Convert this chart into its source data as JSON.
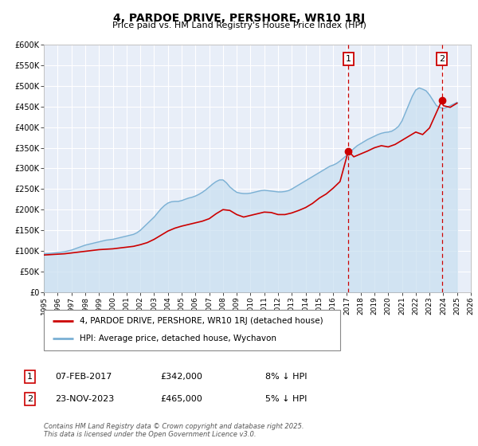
{
  "title": "4, PARDOE DRIVE, PERSHORE, WR10 1RJ",
  "subtitle": "Price paid vs. HM Land Registry's House Price Index (HPI)",
  "xlim": [
    1995,
    2026
  ],
  "ylim": [
    0,
    600000
  ],
  "yticks": [
    0,
    50000,
    100000,
    150000,
    200000,
    250000,
    300000,
    350000,
    400000,
    450000,
    500000,
    550000,
    600000
  ],
  "ytick_labels": [
    "£0",
    "£50K",
    "£100K",
    "£150K",
    "£200K",
    "£250K",
    "£300K",
    "£350K",
    "£400K",
    "£450K",
    "£500K",
    "£550K",
    "£600K"
  ],
  "xticks": [
    1995,
    1996,
    1997,
    1998,
    1999,
    2000,
    2001,
    2002,
    2003,
    2004,
    2005,
    2006,
    2007,
    2008,
    2009,
    2010,
    2011,
    2012,
    2013,
    2014,
    2015,
    2016,
    2017,
    2018,
    2019,
    2020,
    2021,
    2022,
    2023,
    2024,
    2025,
    2026
  ],
  "marker1_x": 2017.1,
  "marker1_y": 342000,
  "marker1_label": "1",
  "marker1_date": "07-FEB-2017",
  "marker1_price": "£342,000",
  "marker1_hpi": "8% ↓ HPI",
  "marker2_x": 2023.9,
  "marker2_y": 465000,
  "marker2_label": "2",
  "marker2_date": "23-NOV-2023",
  "marker2_price": "£465,000",
  "marker2_hpi": "5% ↓ HPI",
  "vline1_x": 2017.1,
  "vline2_x": 2023.9,
  "red_color": "#cc0000",
  "blue_color": "#7ab0d4",
  "blue_fill": "#c8dff0",
  "background_color": "#e8eef8",
  "legend_label_red": "4, PARDOE DRIVE, PERSHORE, WR10 1RJ (detached house)",
  "legend_label_blue": "HPI: Average price, detached house, Wychavon",
  "footer": "Contains HM Land Registry data © Crown copyright and database right 2025.\nThis data is licensed under the Open Government Licence v3.0.",
  "hpi_x": [
    1995.0,
    1995.25,
    1995.5,
    1995.75,
    1996.0,
    1996.25,
    1996.5,
    1996.75,
    1997.0,
    1997.25,
    1997.5,
    1997.75,
    1998.0,
    1998.25,
    1998.5,
    1998.75,
    1999.0,
    1999.25,
    1999.5,
    1999.75,
    2000.0,
    2000.25,
    2000.5,
    2000.75,
    2001.0,
    2001.25,
    2001.5,
    2001.75,
    2002.0,
    2002.25,
    2002.5,
    2002.75,
    2003.0,
    2003.25,
    2003.5,
    2003.75,
    2004.0,
    2004.25,
    2004.5,
    2004.75,
    2005.0,
    2005.25,
    2005.5,
    2005.75,
    2006.0,
    2006.25,
    2006.5,
    2006.75,
    2007.0,
    2007.25,
    2007.5,
    2007.75,
    2008.0,
    2008.25,
    2008.5,
    2008.75,
    2009.0,
    2009.25,
    2009.5,
    2009.75,
    2010.0,
    2010.25,
    2010.5,
    2010.75,
    2011.0,
    2011.25,
    2011.5,
    2011.75,
    2012.0,
    2012.25,
    2012.5,
    2012.75,
    2013.0,
    2013.25,
    2013.5,
    2013.75,
    2014.0,
    2014.25,
    2014.5,
    2014.75,
    2015.0,
    2015.25,
    2015.5,
    2015.75,
    2016.0,
    2016.25,
    2016.5,
    2016.75,
    2017.0,
    2017.25,
    2017.5,
    2017.75,
    2018.0,
    2018.25,
    2018.5,
    2018.75,
    2019.0,
    2019.25,
    2019.5,
    2019.75,
    2020.0,
    2020.25,
    2020.5,
    2020.75,
    2021.0,
    2021.25,
    2021.5,
    2021.75,
    2022.0,
    2022.25,
    2022.5,
    2022.75,
    2023.0,
    2023.25,
    2023.5,
    2023.75,
    2024.0,
    2024.25,
    2024.5,
    2024.75,
    2025.0
  ],
  "hpi_y": [
    93000,
    93500,
    94000,
    95000,
    96000,
    97000,
    98000,
    100000,
    102000,
    105000,
    108000,
    111000,
    114000,
    116000,
    118000,
    120000,
    122000,
    124000,
    126000,
    127000,
    128000,
    130000,
    132000,
    134000,
    136000,
    138000,
    140000,
    144000,
    150000,
    158000,
    166000,
    174000,
    182000,
    192000,
    202000,
    210000,
    216000,
    219000,
    220000,
    220000,
    222000,
    225000,
    228000,
    230000,
    233000,
    237000,
    242000,
    248000,
    255000,
    262000,
    268000,
    272000,
    272000,
    265000,
    255000,
    248000,
    242000,
    240000,
    239000,
    239000,
    240000,
    242000,
    244000,
    246000,
    247000,
    246000,
    245000,
    244000,
    243000,
    243000,
    244000,
    246000,
    250000,
    255000,
    260000,
    265000,
    270000,
    275000,
    280000,
    285000,
    290000,
    295000,
    300000,
    305000,
    308000,
    312000,
    318000,
    325000,
    332000,
    340000,
    348000,
    355000,
    360000,
    365000,
    370000,
    374000,
    378000,
    382000,
    385000,
    387000,
    388000,
    390000,
    395000,
    402000,
    415000,
    435000,
    455000,
    475000,
    490000,
    495000,
    492000,
    488000,
    478000,
    465000,
    452000,
    448000,
    445000,
    448000,
    452000,
    456000,
    460000
  ],
  "price_x": [
    1995.0,
    1995.5,
    1996.0,
    1996.5,
    1997.0,
    1997.5,
    1998.0,
    1998.5,
    1999.0,
    1999.5,
    2000.0,
    2000.5,
    2001.0,
    2001.5,
    2002.0,
    2002.5,
    2003.0,
    2003.5,
    2004.0,
    2004.5,
    2005.0,
    2005.5,
    2006.0,
    2006.5,
    2007.0,
    2007.5,
    2008.0,
    2008.5,
    2009.0,
    2009.5,
    2010.0,
    2010.5,
    2011.0,
    2011.5,
    2012.0,
    2012.5,
    2013.0,
    2013.5,
    2014.0,
    2014.5,
    2015.0,
    2015.5,
    2016.0,
    2016.5,
    2017.1,
    2017.5,
    2018.0,
    2018.5,
    2019.0,
    2019.5,
    2020.0,
    2020.5,
    2021.0,
    2021.5,
    2022.0,
    2022.5,
    2023.0,
    2023.9,
    2024.0,
    2024.5,
    2025.0
  ],
  "price_y": [
    90000,
    91000,
    92000,
    93000,
    95000,
    97000,
    99000,
    101000,
    103000,
    104000,
    105000,
    107000,
    109000,
    111000,
    115000,
    120000,
    128000,
    138000,
    148000,
    155000,
    160000,
    164000,
    168000,
    172000,
    178000,
    190000,
    200000,
    198000,
    188000,
    182000,
    186000,
    190000,
    194000,
    193000,
    188000,
    188000,
    192000,
    198000,
    205000,
    215000,
    228000,
    238000,
    252000,
    268000,
    342000,
    328000,
    335000,
    342000,
    350000,
    355000,
    352000,
    358000,
    368000,
    378000,
    388000,
    382000,
    398000,
    465000,
    452000,
    448000,
    458000
  ]
}
